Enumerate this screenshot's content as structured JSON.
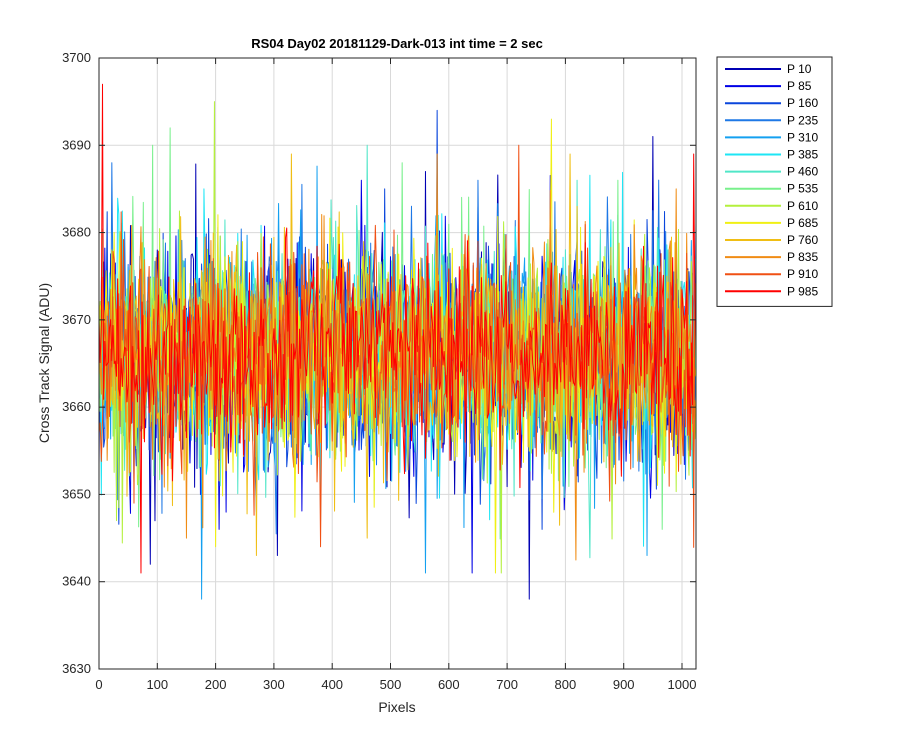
{
  "chart_data": {
    "type": "line",
    "title": "RS04 Day02 20181129-Dark-013 int time = 2 sec",
    "xlabel": "Pixels",
    "ylabel": "Cross Track Signal (ADU)",
    "xlim": [
      0,
      1024
    ],
    "ylim": [
      3630,
      3700
    ],
    "xticks": [
      0,
      100,
      200,
      300,
      400,
      500,
      600,
      700,
      800,
      900,
      1000
    ],
    "yticks": [
      3630,
      3640,
      3650,
      3660,
      3670,
      3680,
      3690,
      3700
    ],
    "grid": true,
    "legend_position": "outside-top-right",
    "series": [
      {
        "name": "P 10",
        "color": "#0000b4",
        "mean": 3666,
        "std": 6.5,
        "spikes": [
          [
            88,
            3642
          ],
          [
            305,
            3643
          ],
          [
            560,
            3687
          ],
          [
            737,
            3638
          ],
          [
            950,
            3691
          ]
        ]
      },
      {
        "name": "P 85",
        "color": "#0000e6",
        "mean": 3666,
        "std": 6.5,
        "spikes": [
          [
            640,
            3641
          ],
          [
            205,
            3646
          ],
          [
            450,
            3686
          ]
        ]
      },
      {
        "name": "P 160",
        "color": "#0a46dc",
        "mean": 3666,
        "std": 6.5,
        "spikes": [
          [
            580,
            3694
          ],
          [
            760,
            3646
          ],
          [
            270,
            3648
          ]
        ]
      },
      {
        "name": "P 235",
        "color": "#1e78e6",
        "mean": 3666,
        "std": 6.5,
        "spikes": [
          [
            22,
            3688
          ],
          [
            650,
            3686
          ]
        ]
      },
      {
        "name": "P 310",
        "color": "#14a0f0",
        "mean": 3666,
        "std": 6.5,
        "spikes": [
          [
            176,
            3638
          ],
          [
            940,
            3643
          ],
          [
            560,
            3641
          ]
        ]
      },
      {
        "name": "P 385",
        "color": "#1ee6f5",
        "mean": 3666,
        "std": 6.5,
        "spikes": [
          [
            180,
            3685
          ],
          [
            380,
            3647
          ]
        ]
      },
      {
        "name": "P 460",
        "color": "#50e6c8",
        "mean": 3666,
        "std": 6.5,
        "spikes": [
          [
            460,
            3690
          ],
          [
            820,
            3686
          ]
        ]
      },
      {
        "name": "P 535",
        "color": "#78f08c",
        "mean": 3666,
        "std": 6.5,
        "spikes": [
          [
            122,
            3692
          ],
          [
            92,
            3690
          ],
          [
            520,
            3688
          ],
          [
            890,
            3686
          ]
        ]
      },
      {
        "name": "P 610",
        "color": "#b4f03c",
        "mean": 3666,
        "std": 6.5,
        "spikes": [
          [
            198,
            3695
          ],
          [
            690,
            3641
          ],
          [
            30,
            3647
          ]
        ]
      },
      {
        "name": "P 685",
        "color": "#f0f014",
        "mean": 3666,
        "std": 6.5,
        "spikes": [
          [
            775,
            3693
          ],
          [
            680,
            3641
          ],
          [
            200,
            3644
          ]
        ]
      },
      {
        "name": "P 760",
        "color": "#f0be14",
        "mean": 3666,
        "std": 6.5,
        "spikes": [
          [
            330,
            3689
          ],
          [
            270,
            3643
          ],
          [
            820,
            3683
          ]
        ]
      },
      {
        "name": "P 835",
        "color": "#f08c14",
        "mean": 3666,
        "std": 6.5,
        "spikes": [
          [
            580,
            3689
          ],
          [
            150,
            3645
          ],
          [
            990,
            3685
          ]
        ]
      },
      {
        "name": "P 910",
        "color": "#f05014",
        "mean": 3666,
        "std": 6.5,
        "spikes": [
          [
            720,
            3690
          ],
          [
            380,
            3644
          ],
          [
            60,
            3649
          ]
        ]
      },
      {
        "name": "P 985",
        "color": "#ff0000",
        "mean": 3666,
        "std": 5.5,
        "spikes": [
          [
            5,
            3697
          ],
          [
            72,
            3641
          ],
          [
            1020,
            3689
          ]
        ]
      }
    ]
  }
}
